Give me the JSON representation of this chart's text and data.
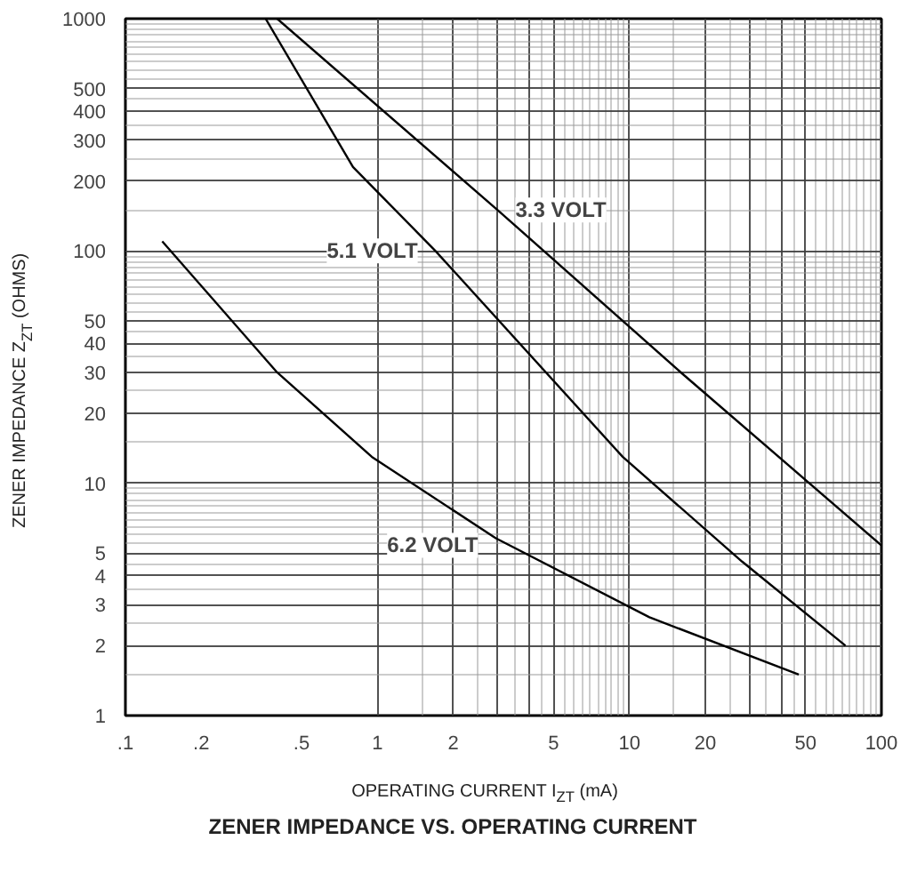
{
  "chart_data": {
    "type": "line",
    "title": "ZENER IMPEDANCE VS. OPERATING CURRENT",
    "xlabel": "OPERATING CURRENT I$_{ZT}$ (mA)",
    "ylabel": "ZENER IMPEDANCE Z$_{ZT}$ (OHMS)",
    "log": "xy",
    "grid": true,
    "xlim": [
      0.1,
      100
    ],
    "ylim": [
      1,
      1000
    ],
    "xticks": [
      {
        "value": 0.1,
        "label": ".1"
      },
      {
        "value": 0.2,
        "label": ".2"
      },
      {
        "value": 0.5,
        "label": ".5"
      },
      1,
      2,
      5,
      10,
      20,
      50,
      100
    ],
    "yticks": [
      1,
      2,
      3,
      4,
      5,
      10,
      20,
      30,
      40,
      50,
      100,
      200,
      300,
      400,
      500,
      1000
    ],
    "series": [
      {
        "name": "3.3 VOLT",
        "color": "#000000",
        "x": [
          0.4,
          3,
          16,
          100
        ],
        "values": [
          1000,
          150,
          30,
          5.4
        ]
      },
      {
        "name": "5.1 VOLT",
        "color": "#000000",
        "x": [
          0.36,
          0.8,
          1.7,
          9.4,
          28,
          72
        ],
        "values": [
          1000,
          230,
          100,
          13,
          4.6,
          2.0
        ]
      },
      {
        "name": "6.2 VOLT",
        "color": "#000000",
        "x": [
          0.14,
          0.4,
          0.95,
          2.95,
          12,
          47
        ],
        "values": [
          110,
          30,
          13,
          5.8,
          2.65,
          1.5
        ]
      }
    ]
  }
}
